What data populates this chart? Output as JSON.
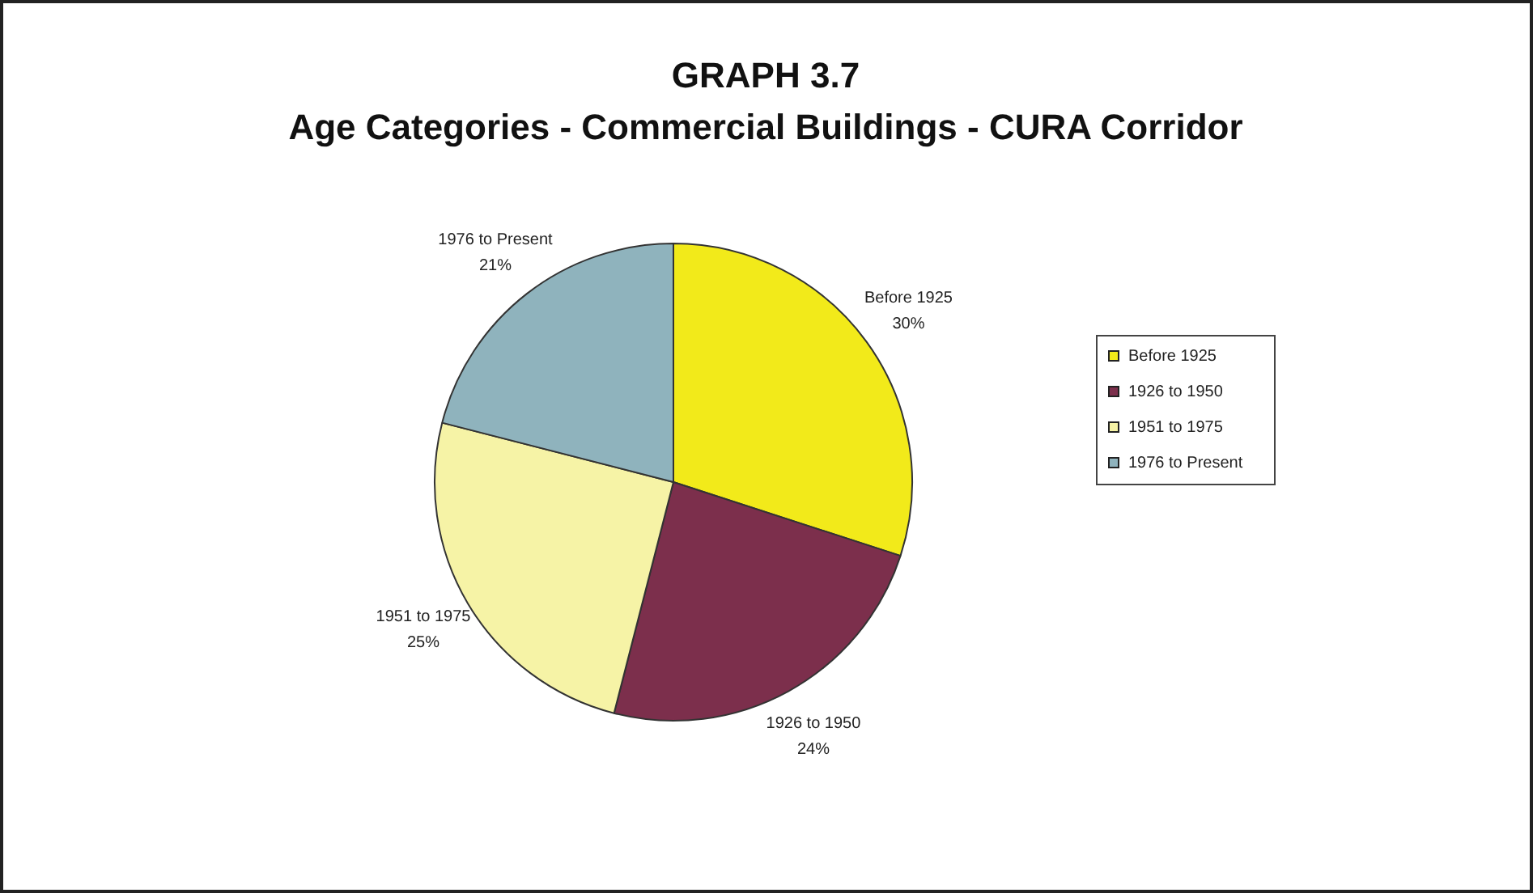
{
  "chart_data": {
    "type": "pie",
    "title": "GRAPH 3.7",
    "subtitle": "Age Categories - Commercial Buildings - CURA Corridor",
    "categories": [
      "Before 1925",
      "1926 to 1950",
      "1951 to 1975",
      "1976 to Present"
    ],
    "values": [
      30,
      24,
      25,
      21
    ],
    "value_labels": [
      "30%",
      "24%",
      "25%",
      "21%"
    ],
    "colors": [
      "#f2ea1a",
      "#7c2f4c",
      "#f6f3a6",
      "#8fb3bd"
    ],
    "legend": "right"
  }
}
